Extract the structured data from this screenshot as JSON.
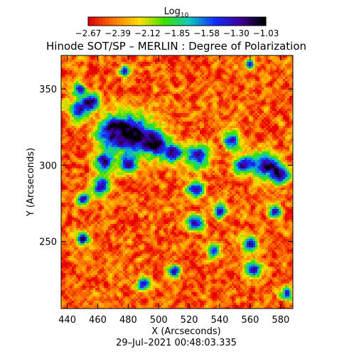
{
  "chart_data": {
    "type": "heatmap",
    "title": "Hinode SOT/SP – MERLIN : Degree of Polarization",
    "colorbar_title": "Log",
    "colorbar_title_subscript": "10",
    "colorbar_ticks": [
      "−2.67",
      "−2.39",
      "−2.12",
      "−1.85",
      "−1.58",
      "−1.30",
      "−1.03"
    ],
    "colorbar_range": [
      -2.67,
      -1.03
    ],
    "colormap": [
      "#e80000",
      "#ff7a00",
      "#ffe000",
      "#3ce000",
      "#10c8c0",
      "#1030ff",
      "#4000a0",
      "#000000"
    ],
    "xlabel": "X (Arcseconds)",
    "ylabel": "Y (Arcseconds)",
    "xlim": [
      436,
      588
    ],
    "ylim": [
      206,
      372
    ],
    "xticks": [
      440,
      460,
      480,
      500,
      520,
      540,
      560,
      580
    ],
    "yticks": [
      250,
      300,
      350
    ],
    "timestamp": "29–Jul–2021 00:48:03.335",
    "grid": false,
    "structures": [
      {
        "x": 470,
        "y": 322,
        "r": 10
      },
      {
        "x": 484,
        "y": 320,
        "r": 12
      },
      {
        "x": 498,
        "y": 314,
        "r": 8
      },
      {
        "x": 448,
        "y": 336,
        "r": 6
      },
      {
        "x": 456,
        "y": 342,
        "r": 5
      },
      {
        "x": 464,
        "y": 302,
        "r": 6
      },
      {
        "x": 462,
        "y": 286,
        "r": 6
      },
      {
        "x": 450,
        "y": 278,
        "r": 4
      },
      {
        "x": 480,
        "y": 300,
        "r": 5
      },
      {
        "x": 510,
        "y": 308,
        "r": 6
      },
      {
        "x": 526,
        "y": 306,
        "r": 7
      },
      {
        "x": 548,
        "y": 316,
        "r": 5
      },
      {
        "x": 556,
        "y": 300,
        "r": 6
      },
      {
        "x": 570,
        "y": 300,
        "r": 8
      },
      {
        "x": 580,
        "y": 294,
        "r": 6
      },
      {
        "x": 524,
        "y": 284,
        "r": 5
      },
      {
        "x": 524,
        "y": 262,
        "r": 5
      },
      {
        "x": 560,
        "y": 248,
        "r": 5
      },
      {
        "x": 562,
        "y": 232,
        "r": 5
      },
      {
        "x": 584,
        "y": 216,
        "r": 4
      },
      {
        "x": 490,
        "y": 222,
        "r": 4
      },
      {
        "x": 510,
        "y": 230,
        "r": 4
      },
      {
        "x": 448,
        "y": 350,
        "r": 4
      },
      {
        "x": 478,
        "y": 362,
        "r": 3
      },
      {
        "x": 540,
        "y": 270,
        "r": 4
      },
      {
        "x": 450,
        "y": 252,
        "r": 4
      },
      {
        "x": 560,
        "y": 366,
        "r": 3
      },
      {
        "x": 536,
        "y": 244,
        "r": 4
      },
      {
        "x": 576,
        "y": 270,
        "r": 4
      }
    ]
  }
}
